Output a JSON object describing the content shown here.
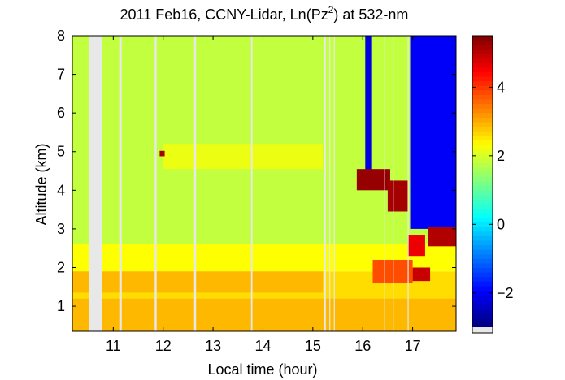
{
  "chart_data": {
    "type": "heatmap",
    "title_main": "2011 Feb16, CCNY-Lidar, Ln(Pz",
    "title_sup": "2",
    "title_tail": ") at 532-nm",
    "xlabel": "Local time (hour)",
    "ylabel": "Altitude (km)",
    "xlim": [
      10.18,
      17.87
    ],
    "ylim": [
      0.35,
      8
    ],
    "x_ticks": [
      11,
      12,
      13,
      14,
      15,
      16,
      17
    ],
    "y_ticks": [
      1,
      2,
      3,
      4,
      5,
      6,
      7,
      8
    ],
    "colorbar": {
      "colormap": "jet",
      "clim": [
        -3.0,
        5.5
      ],
      "ticks": [
        -2,
        0,
        2,
        4
      ],
      "nodata_color": "#e8e8e8"
    },
    "colors": {
      "nodata_gap": "#e8e8e8"
    },
    "nodata_gaps": [
      {
        "x0": 10.52,
        "x1": 10.77
      },
      {
        "x0": 11.12,
        "x1": 11.17
      },
      {
        "x0": 11.83,
        "x1": 11.87
      },
      {
        "x0": 12.62,
        "x1": 12.66
      },
      {
        "x0": 13.76,
        "x1": 13.79
      },
      {
        "x0": 15.22,
        "x1": 15.26
      },
      {
        "x0": 15.33,
        "x1": 15.35
      },
      {
        "x0": 15.42,
        "x1": 15.44
      },
      {
        "x0": 16.43,
        "x1": 16.45
      },
      {
        "x0": 16.6,
        "x1": 16.62
      },
      {
        "x0": 16.9,
        "x1": 16.92
      }
    ],
    "background_layers": [
      {
        "y0": 0.35,
        "y1": 1.2,
        "value": 2.9
      },
      {
        "y0": 1.2,
        "y1": 1.9,
        "value": 2.6
      },
      {
        "y0": 1.9,
        "y1": 2.6,
        "value": 2.3
      },
      {
        "y0": 2.6,
        "y1": 8.0,
        "value": 1.8
      }
    ],
    "features": [
      {
        "kind": "residual-layer",
        "x0": 10.18,
        "x1": 15.2,
        "y0": 1.35,
        "y1": 1.9,
        "value": 2.9
      },
      {
        "kind": "thin-aerosol-layer",
        "x0": 12.0,
        "x1": 15.2,
        "y0": 4.55,
        "y1": 5.2,
        "value": 2.15
      },
      {
        "kind": "small-cloud",
        "x0": 11.93,
        "x1": 12.03,
        "y0": 4.88,
        "y1": 5.02,
        "value": 5.2
      },
      {
        "kind": "clear-air",
        "x0": 16.05,
        "x1": 16.17,
        "y0": 4.5,
        "y1": 8.0,
        "value": -2.2
      },
      {
        "kind": "clear-air",
        "x0": 16.95,
        "x1": 17.87,
        "y0": 3.0,
        "y1": 8.0,
        "value": -2.0
      },
      {
        "kind": "cloud-layer",
        "x0": 15.88,
        "x1": 16.55,
        "y0": 4.0,
        "y1": 4.55,
        "value": 5.3
      },
      {
        "kind": "cloud-layer",
        "x0": 16.5,
        "x1": 16.9,
        "y0": 3.45,
        "y1": 4.25,
        "value": 5.2
      },
      {
        "kind": "cloud-layer",
        "x0": 17.3,
        "x1": 17.87,
        "y0": 2.55,
        "y1": 3.05,
        "value": 5.1
      },
      {
        "kind": "cloud-layer",
        "x0": 16.9,
        "x1": 17.25,
        "y0": 2.3,
        "y1": 2.85,
        "value": 4.6
      },
      {
        "kind": "cloud-layer",
        "x0": 17.0,
        "x1": 17.35,
        "y0": 1.65,
        "y1": 2.0,
        "value": 4.9
      },
      {
        "kind": "boundary-layer-top",
        "x0": 16.2,
        "x1": 17.0,
        "y0": 1.6,
        "y1": 2.2,
        "value": 3.8
      }
    ]
  }
}
